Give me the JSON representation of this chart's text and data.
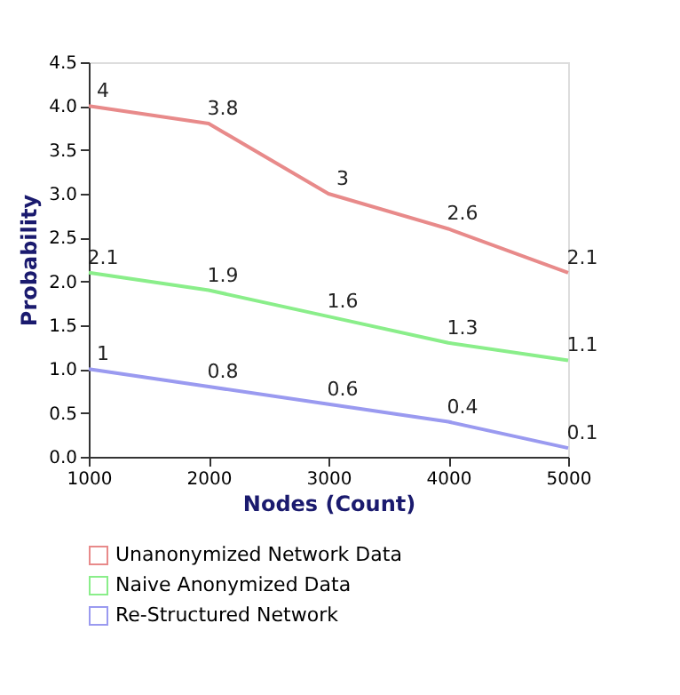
{
  "chart_data": {
    "type": "line",
    "xlabel": "Nodes (Count)",
    "ylabel": "Probability",
    "x": [
      1000,
      2000,
      3000,
      4000,
      5000
    ],
    "series": [
      {
        "name": "Unanonymized Network Data",
        "color": "#e88a8a",
        "values": [
          4,
          3.8,
          3,
          2.6,
          2.1
        ]
      },
      {
        "name": "Naive Anonymized Data",
        "color": "#8aee8a",
        "values": [
          2.1,
          1.9,
          1.6,
          1.3,
          1.1
        ]
      },
      {
        "name": "Re-Structured Network",
        "color": "#9a9af0",
        "values": [
          1,
          0.8,
          0.6,
          0.4,
          0.1
        ]
      }
    ],
    "xlim": [
      1000,
      5000
    ],
    "xticks": [
      1000,
      2000,
      3000,
      4000,
      5000
    ],
    "ylim": [
      0,
      4.5
    ],
    "yticks": [
      {
        "value": 0,
        "label": "0.0"
      },
      {
        "value": 0.5,
        "label": "0.5"
      },
      {
        "value": 1,
        "label": "1.0"
      },
      {
        "value": 1.5,
        "label": "1.5"
      },
      {
        "value": 2,
        "label": "2.0"
      },
      {
        "value": 2.5,
        "label": "2.5"
      },
      {
        "value": 3,
        "label": "3.0"
      },
      {
        "value": 3.5,
        "label": "3.5"
      },
      {
        "value": 4,
        "label": "4.0"
      },
      {
        "value": 4.5,
        "label": "4.5"
      }
    ],
    "data_labels": true,
    "legend": "bottom",
    "grid": false,
    "marker": "none",
    "line_style": "solid"
  }
}
